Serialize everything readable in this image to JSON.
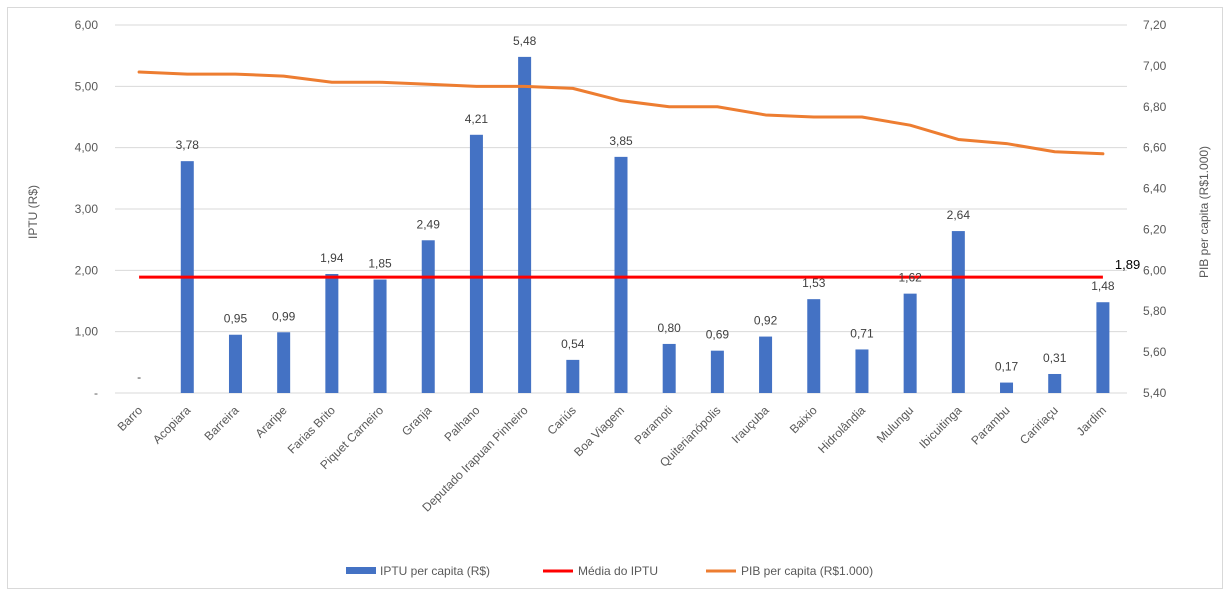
{
  "colors": {
    "bar": "#4472c4",
    "average": "#ff0000",
    "pib": "#ed7d31",
    "grid": "#d9d9d9",
    "text": "#595959"
  },
  "chart_data": {
    "type": "bar",
    "categories": [
      "Barro",
      "Acopiara",
      "Barreira",
      "Araripe",
      "Farias Brito",
      "Piquet Carneiro",
      "Granja",
      "Palhano",
      "Deputado Irapuan Pinheiro",
      "Cariús",
      "Boa Viagem",
      "Paramoti",
      "Quiterianópolis",
      "Irauçuba",
      "Baixio",
      "Hidrolândia",
      "Mulungu",
      "Ibicuitinga",
      "Parambu",
      "Caririaçu",
      "Jardim"
    ],
    "series": [
      {
        "name": "IPTU per capita (R$)",
        "type": "bar",
        "axis": "left",
        "values": [
          0,
          3.78,
          0.95,
          0.99,
          1.94,
          1.85,
          2.49,
          4.21,
          5.48,
          0.54,
          3.85,
          0.8,
          0.69,
          0.92,
          1.53,
          0.71,
          1.62,
          2.64,
          0.17,
          0.31,
          1.48
        ],
        "labels": [
          "-",
          "3,78",
          "0,95",
          "0,99",
          "1,94",
          "1,85",
          "2,49",
          "4,21",
          "5,48",
          "0,54",
          "3,85",
          "0,80",
          "0,69",
          "0,92",
          "1,53",
          "0,71",
          "1,62",
          "2,64",
          "0,17",
          "0,31",
          "1,48"
        ]
      },
      {
        "name": "Média do IPTU",
        "type": "line",
        "axis": "left",
        "value": 1.89,
        "label": "1,89"
      },
      {
        "name": "PIB per capita (R$1.000)",
        "type": "line",
        "axis": "right",
        "values": [
          6.97,
          6.96,
          6.96,
          6.95,
          6.92,
          6.92,
          6.91,
          6.9,
          6.9,
          6.89,
          6.83,
          6.8,
          6.8,
          6.76,
          6.75,
          6.75,
          6.71,
          6.64,
          6.62,
          6.58,
          6.57
        ]
      }
    ],
    "y_left": {
      "title": "IPTU (R$)",
      "min": 0,
      "max": 6,
      "ticks": [
        "-",
        "1,00",
        "2,00",
        "3,00",
        "4,00",
        "5,00",
        "6,00"
      ]
    },
    "y_right": {
      "title": "PIB per capita (R$1.000)",
      "min": 5.4,
      "max": 7.2,
      "ticks": [
        "5,40",
        "5,60",
        "5,80",
        "6,00",
        "6,20",
        "6,40",
        "6,60",
        "6,80",
        "7,00",
        "7,20"
      ]
    },
    "grid": true,
    "legend": "bottom"
  }
}
